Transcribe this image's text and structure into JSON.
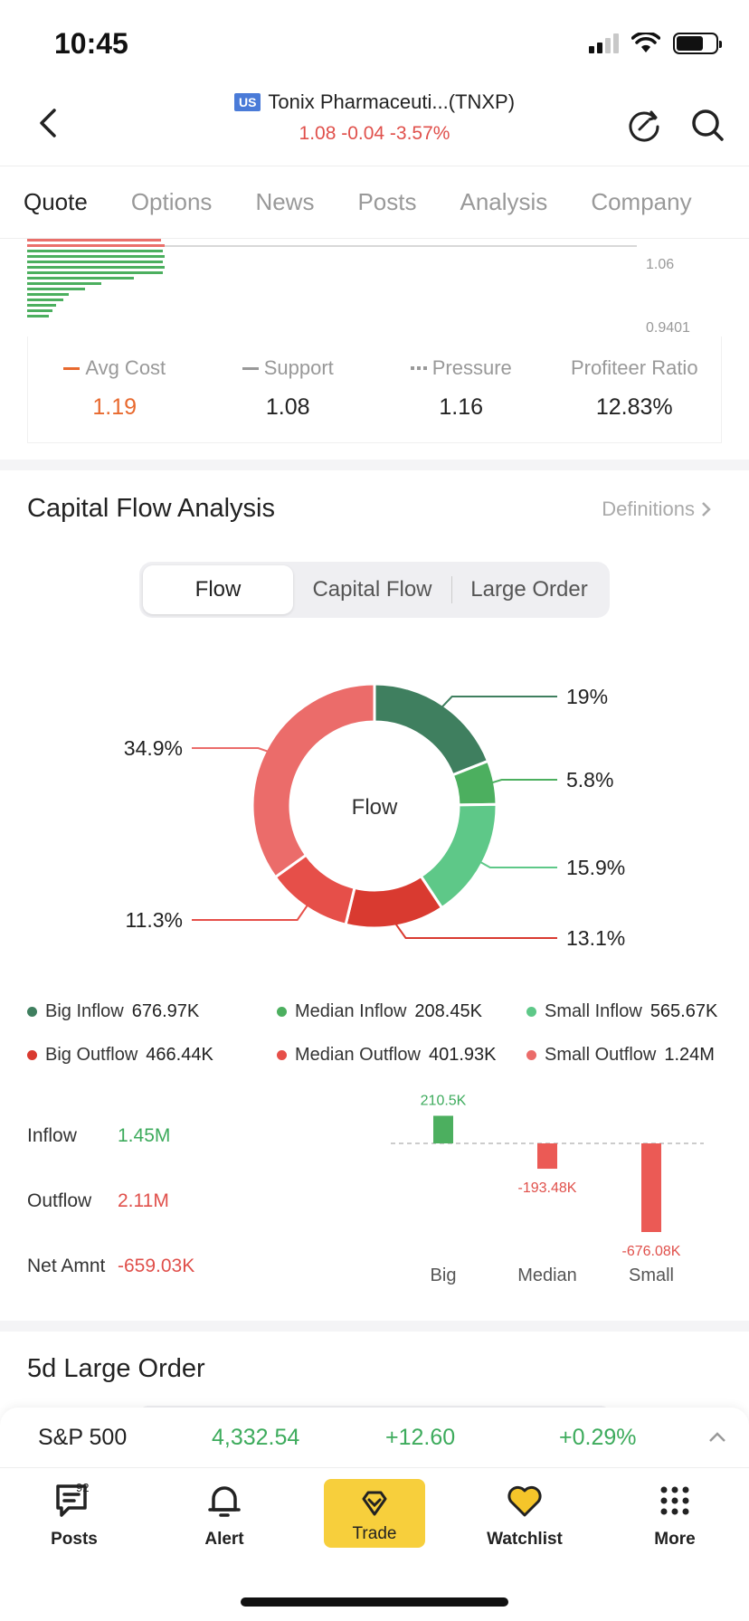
{
  "status": {
    "time": "10:45"
  },
  "header": {
    "exchange_badge": "US",
    "stock_name": "Tonix Pharmaceuti...(TNXP)",
    "price_line": "1.08 -0.04 -3.57%"
  },
  "tabs": [
    "Quote",
    "Options",
    "News",
    "Posts",
    "Analysis",
    "Company"
  ],
  "chip": {
    "price_high": "1.06",
    "price_low": "0.9401",
    "avg_cost_label": "Avg Cost",
    "avg_cost_value": "1.19",
    "support_label": "Support",
    "support_value": "1.08",
    "pressure_label": "Pressure",
    "pressure_value": "1.16",
    "profiteer_label": "Profiteer Ratio",
    "profiteer_value": "12.83%"
  },
  "capital_flow": {
    "title": "Capital Flow Analysis",
    "definitions": "Definitions",
    "segments": [
      "Flow",
      "Capital Flow",
      "Large  Order"
    ],
    "donut_center": "Flow",
    "colors": {
      "big_in": "#3f7f5f",
      "median_in": "#4caf5f",
      "small_in": "#5ec888",
      "big_out": "#d93a30",
      "median_out": "#e64f49",
      "small_out": "#eb6c6a"
    }
  },
  "chart_data": {
    "type": "pie",
    "labels": [
      "Big Inflow",
      "Median Inflow",
      "Small Inflow",
      "Big Outflow",
      "Median Outflow",
      "Small Outflow"
    ],
    "values": [
      19,
      5.8,
      15.9,
      13.1,
      11.3,
      34.9
    ],
    "value_labels": [
      "19%",
      "5.8%",
      "15.9%",
      "13.1%",
      "11.3%",
      "34.9%"
    ],
    "center_label": "Flow"
  },
  "legend": [
    {
      "label": "Big Inflow",
      "value": "676.97K"
    },
    {
      "label": "Median Inflow",
      "value": "208.45K"
    },
    {
      "label": "Small Inflow",
      "value": "565.67K"
    },
    {
      "label": "Big Outflow",
      "value": "466.44K"
    },
    {
      "label": "Median Outflow",
      "value": "401.93K"
    },
    {
      "label": "Small Outflow",
      "value": "1.24M"
    }
  ],
  "summary": {
    "inflow_label": "Inflow",
    "inflow_value": "1.45M",
    "outflow_label": "Outflow",
    "outflow_value": "2.11M",
    "net_label": "Net Amnt",
    "net_value": "-659.03K"
  },
  "net_bars": {
    "type": "bar",
    "categories": [
      "Big",
      "Median",
      "Small"
    ],
    "values": [
      210.5,
      -193.48,
      -676.08
    ],
    "value_labels": [
      "210.5K",
      "-193.48K",
      "-676.08K"
    ]
  },
  "large_order": {
    "title": "5d Large Order"
  },
  "ticker": {
    "name": "S&P 500",
    "value": "4,332.54",
    "change": "+12.60",
    "percent": "+0.29%"
  },
  "nav": {
    "posts": "Posts",
    "posts_badge": "92",
    "alert": "Alert",
    "trade": "Trade",
    "watchlist": "Watchlist",
    "more": "More"
  }
}
